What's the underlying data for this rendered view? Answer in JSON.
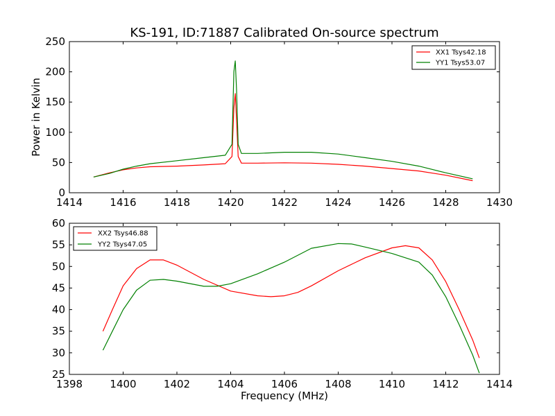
{
  "chart_data": [
    {
      "type": "line",
      "title": "KS-191, ID:71887 Calibrated On-source spectrum",
      "xlabel": "",
      "ylabel": "Power in Kelvin",
      "xlim": [
        1414,
        1430
      ],
      "ylim": [
        0,
        250
      ],
      "xticks": [
        "1414",
        "1416",
        "1418",
        "1420",
        "1422",
        "1424",
        "1426",
        "1428",
        "1430"
      ],
      "yticks": [
        "0",
        "50",
        "100",
        "150",
        "200",
        "250"
      ],
      "legend": "top-right",
      "grid": false,
      "series": [
        {
          "name": "XX1 Tsys42.18",
          "color": "#ff0000",
          "x": [
            1414.9,
            1415.5,
            1416,
            1416.5,
            1417,
            1418,
            1419,
            1419.8,
            1420.05,
            1420.12,
            1420.17,
            1420.22,
            1420.28,
            1420.4,
            1421,
            1422,
            1423,
            1424,
            1425,
            1426,
            1427,
            1428,
            1429
          ],
          "y": [
            26,
            33,
            38,
            41,
            43,
            44,
            46,
            48,
            60,
            140,
            164,
            120,
            60,
            49,
            49,
            49.5,
            49,
            47,
            44,
            40,
            36,
            29,
            20
          ]
        },
        {
          "name": "YY1 Tsys53.07",
          "color": "#008000",
          "x": [
            1414.9,
            1415.5,
            1416,
            1416.5,
            1417,
            1418,
            1419,
            1419.8,
            1420.05,
            1420.12,
            1420.17,
            1420.22,
            1420.28,
            1420.4,
            1421,
            1422,
            1423,
            1424,
            1425,
            1426,
            1427,
            1428,
            1429
          ],
          "y": [
            26,
            32,
            39,
            44,
            48,
            53,
            58,
            62,
            80,
            200,
            218,
            170,
            80,
            65,
            65,
            67,
            67,
            64,
            58,
            52,
            44,
            33,
            23
          ]
        }
      ]
    },
    {
      "type": "line",
      "title": "",
      "xlabel": "Frequency (MHz)",
      "ylabel": "",
      "xlim": [
        1398,
        1414
      ],
      "ylim": [
        25,
        60
      ],
      "xticks": [
        "1398",
        "1400",
        "1402",
        "1404",
        "1406",
        "1408",
        "1410",
        "1412",
        "1414"
      ],
      "yticks": [
        "25",
        "30",
        "35",
        "40",
        "45",
        "50",
        "55",
        "60"
      ],
      "legend": "top-left",
      "grid": false,
      "series": [
        {
          "name": "XX2 Tsys46.88",
          "color": "#ff0000",
          "x": [
            1399.25,
            1399.6,
            1400,
            1400.5,
            1401,
            1401.5,
            1402,
            1403,
            1404,
            1405,
            1405.5,
            1406,
            1406.5,
            1407,
            1408,
            1409,
            1410,
            1410.5,
            1411,
            1411.5,
            1412,
            1412.5,
            1413,
            1413.25
          ],
          "y": [
            35,
            40,
            45.5,
            49.5,
            51.5,
            51.5,
            50.3,
            47,
            44.3,
            43.2,
            43,
            43.2,
            44,
            45.5,
            49,
            52,
            54.3,
            54.8,
            54.3,
            51.5,
            46.5,
            40,
            33,
            28.8
          ]
        },
        {
          "name": "YY2 Tsys47.05",
          "color": "#008000",
          "x": [
            1399.25,
            1399.6,
            1400,
            1400.5,
            1401,
            1401.5,
            1402,
            1403,
            1403.5,
            1404,
            1405,
            1406,
            1407,
            1408,
            1408.5,
            1409,
            1410,
            1411,
            1411.5,
            1412,
            1412.5,
            1413,
            1413.25
          ],
          "y": [
            30.6,
            35,
            40,
            44.5,
            46.8,
            47,
            46.6,
            45.4,
            45.4,
            46,
            48.3,
            51,
            54.2,
            55.3,
            55.2,
            54.5,
            53,
            51,
            48,
            43,
            36.5,
            29.5,
            25.3
          ]
        }
      ]
    }
  ]
}
